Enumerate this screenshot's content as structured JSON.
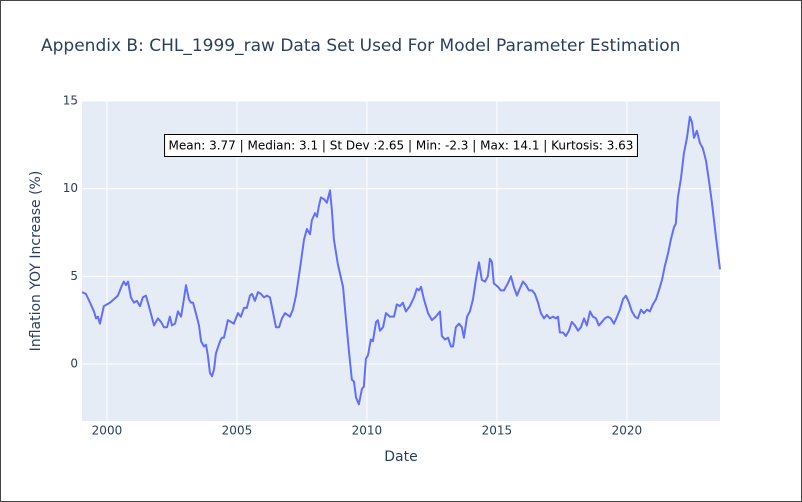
{
  "chart_data": {
    "type": "line",
    "title": "Appendix B: CHL_1999_raw Data Set Used For Model Parameter Estimation",
    "x_label": "Date",
    "y_label": "Inflation YOY Increase (%)",
    "annotation": "Mean: 3.77 | Median: 3.1 | St Dev :2.65 | Min: -2.3 | Max: 14.1 | Kurtosis: 3.63",
    "xlim": [
      1999.04,
      2023.58
    ],
    "xticks": [
      2000,
      2005,
      2010,
      2015,
      2020
    ],
    "ylim": [
      -3.25,
      15
    ],
    "yticks": [
      0,
      5,
      10,
      15
    ],
    "grid": true,
    "series": [
      {
        "color": "#636efa",
        "x": [
          1999.04,
          1999.19,
          1999.35,
          1999.5,
          1999.58,
          1999.65,
          1999.73,
          1999.88,
          2000.12,
          2000.42,
          2000.58,
          2000.65,
          2000.73,
          2000.81,
          2000.92,
          2001.04,
          2001.15,
          2001.27,
          2001.38,
          2001.5,
          2001.65,
          2001.81,
          2001.96,
          2002.08,
          2002.19,
          2002.31,
          2002.42,
          2002.5,
          2002.62,
          2002.73,
          2002.85,
          2002.96,
          2003.04,
          2003.15,
          2003.23,
          2003.31,
          2003.42,
          2003.54,
          2003.62,
          2003.73,
          2003.81,
          2003.88,
          2003.96,
          2004.04,
          2004.12,
          2004.19,
          2004.35,
          2004.42,
          2004.5,
          2004.65,
          2004.77,
          2004.88,
          2005.04,
          2005.15,
          2005.27,
          2005.38,
          2005.5,
          2005.58,
          2005.69,
          2005.81,
          2005.92,
          2006.04,
          2006.15,
          2006.27,
          2006.38,
          2006.5,
          2006.62,
          2006.73,
          2006.85,
          2007.04,
          2007.15,
          2007.27,
          2007.42,
          2007.58,
          2007.69,
          2007.81,
          2007.88,
          2008.0,
          2008.08,
          2008.15,
          2008.23,
          2008.35,
          2008.46,
          2008.58,
          2008.65,
          2008.73,
          2008.88,
          2009.08,
          2009.19,
          2009.31,
          2009.42,
          2009.5,
          2009.58,
          2009.69,
          2009.81,
          2009.88,
          2009.96,
          2010.04,
          2010.15,
          2010.23,
          2010.35,
          2010.42,
          2010.5,
          2010.62,
          2010.73,
          2010.88,
          2011.04,
          2011.15,
          2011.27,
          2011.38,
          2011.5,
          2011.65,
          2011.81,
          2011.92,
          2012.0,
          2012.08,
          2012.19,
          2012.35,
          2012.5,
          2012.65,
          2012.81,
          2012.88,
          2013.0,
          2013.12,
          2013.23,
          2013.31,
          2013.42,
          2013.54,
          2013.65,
          2013.73,
          2013.85,
          2013.96,
          2014.08,
          2014.19,
          2014.31,
          2014.42,
          2014.54,
          2014.65,
          2014.73,
          2014.81,
          2014.88,
          2015.04,
          2015.15,
          2015.27,
          2015.42,
          2015.54,
          2015.65,
          2015.77,
          2015.88,
          2016.0,
          2016.12,
          2016.23,
          2016.35,
          2016.46,
          2016.58,
          2016.69,
          2016.81,
          2016.92,
          2017.04,
          2017.15,
          2017.27,
          2017.35,
          2017.42,
          2017.54,
          2017.65,
          2017.77,
          2017.88,
          2018.0,
          2018.12,
          2018.23,
          2018.35,
          2018.46,
          2018.58,
          2018.69,
          2018.81,
          2018.92,
          2019.04,
          2019.15,
          2019.27,
          2019.38,
          2019.5,
          2019.62,
          2019.73,
          2019.85,
          2019.96,
          2020.08,
          2020.19,
          2020.31,
          2020.42,
          2020.54,
          2020.65,
          2020.77,
          2020.88,
          2021.0,
          2021.12,
          2021.23,
          2021.35,
          2021.46,
          2021.58,
          2021.69,
          2021.81,
          2021.88,
          2021.96,
          2022.08,
          2022.19,
          2022.31,
          2022.42,
          2022.5,
          2022.58,
          2022.69,
          2022.81,
          2022.92,
          2023.04,
          2023.15,
          2023.27,
          2023.42,
          2023.58
        ],
        "values": [
          4.1,
          4.0,
          3.5,
          3.0,
          2.6,
          2.7,
          2.3,
          3.3,
          3.5,
          3.9,
          4.5,
          4.7,
          4.5,
          4.7,
          3.8,
          3.5,
          3.6,
          3.3,
          3.8,
          3.9,
          3.1,
          2.2,
          2.6,
          2.4,
          2.1,
          2.1,
          2.7,
          2.2,
          2.3,
          3.0,
          2.7,
          3.7,
          4.5,
          3.7,
          3.5,
          3.5,
          2.9,
          2.2,
          1.3,
          1.0,
          1.1,
          0.5,
          -0.5,
          -0.7,
          -0.3,
          0.6,
          1.3,
          1.5,
          1.5,
          2.5,
          2.4,
          2.3,
          2.9,
          2.7,
          3.2,
          3.2,
          3.9,
          4.0,
          3.6,
          4.1,
          4.0,
          3.8,
          3.9,
          3.8,
          3.0,
          2.1,
          2.1,
          2.6,
          2.9,
          2.7,
          3.1,
          3.9,
          5.4,
          7.1,
          7.7,
          7.4,
          8.2,
          8.6,
          8.4,
          9.0,
          9.5,
          9.4,
          9.2,
          9.9,
          8.8,
          7.1,
          5.7,
          4.4,
          2.6,
          0.7,
          -0.9,
          -1.0,
          -1.9,
          -2.3,
          -1.4,
          -1.3,
          0.3,
          0.5,
          1.4,
          1.3,
          2.4,
          2.5,
          1.9,
          2.1,
          2.9,
          2.7,
          2.7,
          3.4,
          3.3,
          3.5,
          3.0,
          3.3,
          3.8,
          4.3,
          4.2,
          4.4,
          3.7,
          2.9,
          2.5,
          2.7,
          3.0,
          1.6,
          1.4,
          1.5,
          1.0,
          1.0,
          2.1,
          2.3,
          2.1,
          1.5,
          2.7,
          3.0,
          3.7,
          4.8,
          5.8,
          4.8,
          4.7,
          5.0,
          6.0,
          5.8,
          4.6,
          4.4,
          4.2,
          4.2,
          4.6,
          5.0,
          4.4,
          3.9,
          4.3,
          4.7,
          4.5,
          4.2,
          4.2,
          4.0,
          3.5,
          2.9,
          2.6,
          2.8,
          2.6,
          2.7,
          2.6,
          2.7,
          1.8,
          1.8,
          1.6,
          1.9,
          2.4,
          2.2,
          1.9,
          2.1,
          2.6,
          2.2,
          3.0,
          2.7,
          2.6,
          2.2,
          2.4,
          2.6,
          2.7,
          2.6,
          2.3,
          2.7,
          3.1,
          3.7,
          3.9,
          3.5,
          3.0,
          2.7,
          2.6,
          3.1,
          2.9,
          3.1,
          3.0,
          3.4,
          3.7,
          4.2,
          4.8,
          5.6,
          6.3,
          7.1,
          7.8,
          8.0,
          9.5,
          10.6,
          12.0,
          12.9,
          14.1,
          13.8,
          12.9,
          13.3,
          12.6,
          12.3,
          11.6,
          10.5,
          9.2,
          7.3,
          5.4
        ]
      }
    ]
  }
}
